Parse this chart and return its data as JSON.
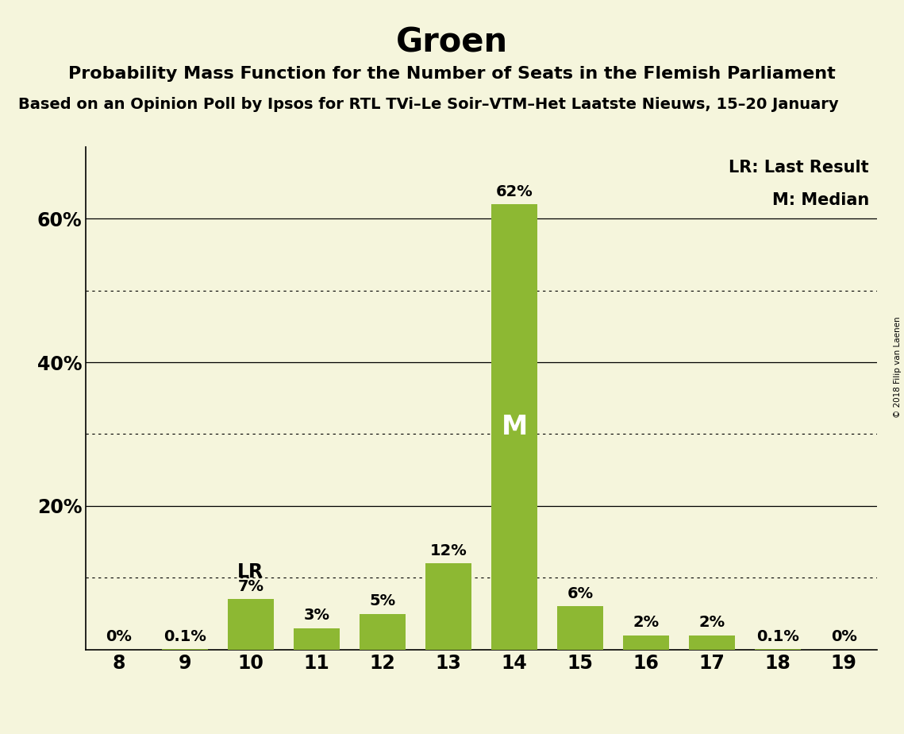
{
  "title": "Groen",
  "subtitle1": "Probability Mass Function for the Number of Seats in the Flemish Parliament",
  "subtitle2": "Based on an Opinion Poll by Ipsos for RTL TVi–Le Soir–VTM–Het Laatste Nieuws, 15–20 January",
  "copyright": "© 2018 Filip van Laenen",
  "seats": [
    8,
    9,
    10,
    11,
    12,
    13,
    14,
    15,
    16,
    17,
    18,
    19
  ],
  "probabilities": [
    0.0,
    0.1,
    7.0,
    3.0,
    5.0,
    12.0,
    62.0,
    6.0,
    2.0,
    2.0,
    0.1,
    0.0
  ],
  "bar_color": "#8db833",
  "background_color": "#f5f5dc",
  "median_seat": 14,
  "last_result_seat": 10,
  "legend_lr": "LR: Last Result",
  "legend_m": "M: Median",
  "ylim": [
    0,
    70
  ],
  "solid_lines": [
    20,
    40,
    60
  ],
  "dotted_lines": [
    10,
    30,
    50
  ],
  "bar_width": 0.7,
  "title_fontsize": 30,
  "subtitle1_fontsize": 16,
  "subtitle2_fontsize": 14,
  "label_fontsize": 14,
  "axis_fontsize": 17,
  "legend_fontsize": 15
}
